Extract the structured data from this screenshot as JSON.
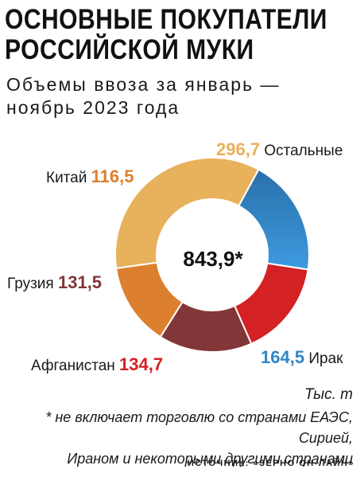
{
  "title": {
    "line1": "ОСНОВНЫЕ ПОКУПАТЕЛИ",
    "line2": "РОССИЙСКОЙ МУКИ"
  },
  "subtitle": {
    "line1": "Объемы ввоза за январь —",
    "line2": "ноябрь 2023 года"
  },
  "center_total": "843,9*",
  "units": "Тыс. т",
  "footnote": {
    "line1": "* не включает торговлю со странами ЕАЭС, Сирией,",
    "line2": "Ираном и некоторыми другими странами"
  },
  "source": "ИСТОЧНИК: «ЗЕРНО ОН-ЛАЙН»",
  "chart_data": {
    "type": "pie",
    "donut": true,
    "total": 843.9,
    "slices": [
      {
        "name": "Остальные",
        "value": 296.7,
        "label": "296,7",
        "color": "#e8b15c"
      },
      {
        "name": "Ирак",
        "value": 164.5,
        "label": "164,5",
        "color": "#2f86c9"
      },
      {
        "name": "Афганистан",
        "value": 134.7,
        "label": "134,7",
        "color": "#d32124"
      },
      {
        "name": "Грузия",
        "value": 131.5,
        "label": "131,5",
        "color": "#833638"
      },
      {
        "name": "Китай",
        "value": 116.5,
        "label": "116,5",
        "color": "#dc7f2f"
      }
    ]
  }
}
